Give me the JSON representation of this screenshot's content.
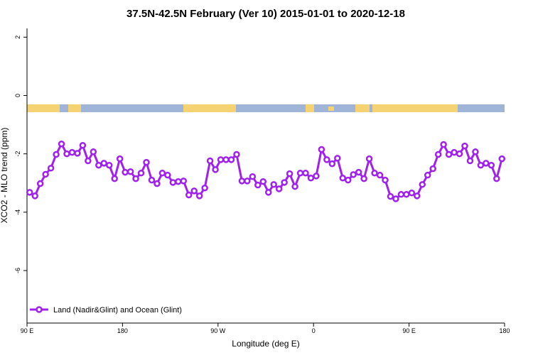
{
  "chart_data": {
    "type": "line",
    "title": "37.5N-42.5N February (Ver 10)   2015-01-01 to 2020-12-18",
    "xlabel": "Longitude (deg E)",
    "ylabel": "XCO2 - MLO trend (ppm)",
    "x": [
      92.5,
      97.5,
      102.5,
      107.5,
      112.5,
      117.5,
      122.5,
      127.5,
      132.5,
      137.5,
      142.5,
      147.5,
      152.5,
      157.5,
      162.5,
      167.5,
      172.5,
      177.5,
      182.5,
      187.5,
      192.5,
      197.5,
      202.5,
      207.5,
      212.5,
      217.5,
      222.5,
      227.5,
      232.5,
      237.5,
      242.5,
      247.5,
      252.5,
      257.5,
      262.5,
      267.5,
      272.5,
      277.5,
      282.5,
      287.5,
      292.5,
      297.5,
      302.5,
      307.5,
      312.5,
      317.5,
      322.5,
      327.5,
      332.5,
      337.5,
      342.5,
      347.5,
      352.5,
      357.5,
      362.5,
      367.5,
      372.5,
      377.5,
      382.5,
      387.5,
      392.5,
      397.5,
      402.5,
      407.5,
      412.5,
      417.5,
      422.5,
      427.5,
      432.5,
      437.5,
      442.5,
      447.5,
      452.5,
      457.5,
      462.5,
      467.5,
      472.5,
      477.5,
      482.5,
      487.5,
      492.5,
      497.5,
      502.5,
      507.5,
      512.5,
      517.5,
      522.5,
      527.5,
      532.5,
      537.5
    ],
    "series": [
      {
        "name": "Land (Nadir&Glint) and Ocean (Glint)",
        "color": "#a020f0",
        "values": [
          -3.32,
          -3.44,
          -3.02,
          -2.7,
          -2.49,
          -2.02,
          -1.66,
          -2.0,
          -1.95,
          -1.98,
          -1.71,
          -2.24,
          -1.93,
          -2.39,
          -2.32,
          -2.39,
          -2.85,
          -2.17,
          -2.63,
          -2.61,
          -2.85,
          -2.66,
          -2.29,
          -2.9,
          -3.02,
          -2.66,
          -2.73,
          -2.98,
          -2.95,
          -2.93,
          -3.41,
          -3.27,
          -3.44,
          -3.17,
          -2.24,
          -2.54,
          -2.2,
          -2.2,
          -2.2,
          -2.02,
          -2.93,
          -2.93,
          -2.78,
          -3.07,
          -2.95,
          -3.32,
          -3.05,
          -3.2,
          -2.98,
          -2.68,
          -3.12,
          -2.66,
          -2.66,
          -2.83,
          -2.76,
          -1.85,
          -2.2,
          -2.34,
          -2.15,
          -2.83,
          -2.9,
          -2.71,
          -2.63,
          -2.85,
          -2.17,
          -2.66,
          -2.73,
          -2.9,
          -3.46,
          -3.54,
          -3.39,
          -3.39,
          -3.34,
          -3.44,
          -3.05,
          -2.73,
          -2.51,
          -2.02,
          -1.68,
          -2.02,
          -1.95,
          -2.0,
          -1.73,
          -2.24,
          -1.93,
          -2.39,
          -2.32,
          -2.39,
          -2.85,
          -2.17
        ]
      }
    ],
    "xlim": [
      90,
      540
    ],
    "xticks": [
      {
        "value": 90,
        "label": "90 E"
      },
      180,
      {
        "value": 270,
        "label": "90 W"
      },
      {
        "value": 360,
        "label": "0"
      },
      {
        "value": 450,
        "label": "90 E"
      },
      {
        "value": 540,
        "label": "180"
      }
    ],
    "ylim": [
      -7.8,
      2.3
    ],
    "yticks": [
      -6,
      -4,
      -2,
      0,
      2
    ],
    "legend": "bottom-left"
  }
}
